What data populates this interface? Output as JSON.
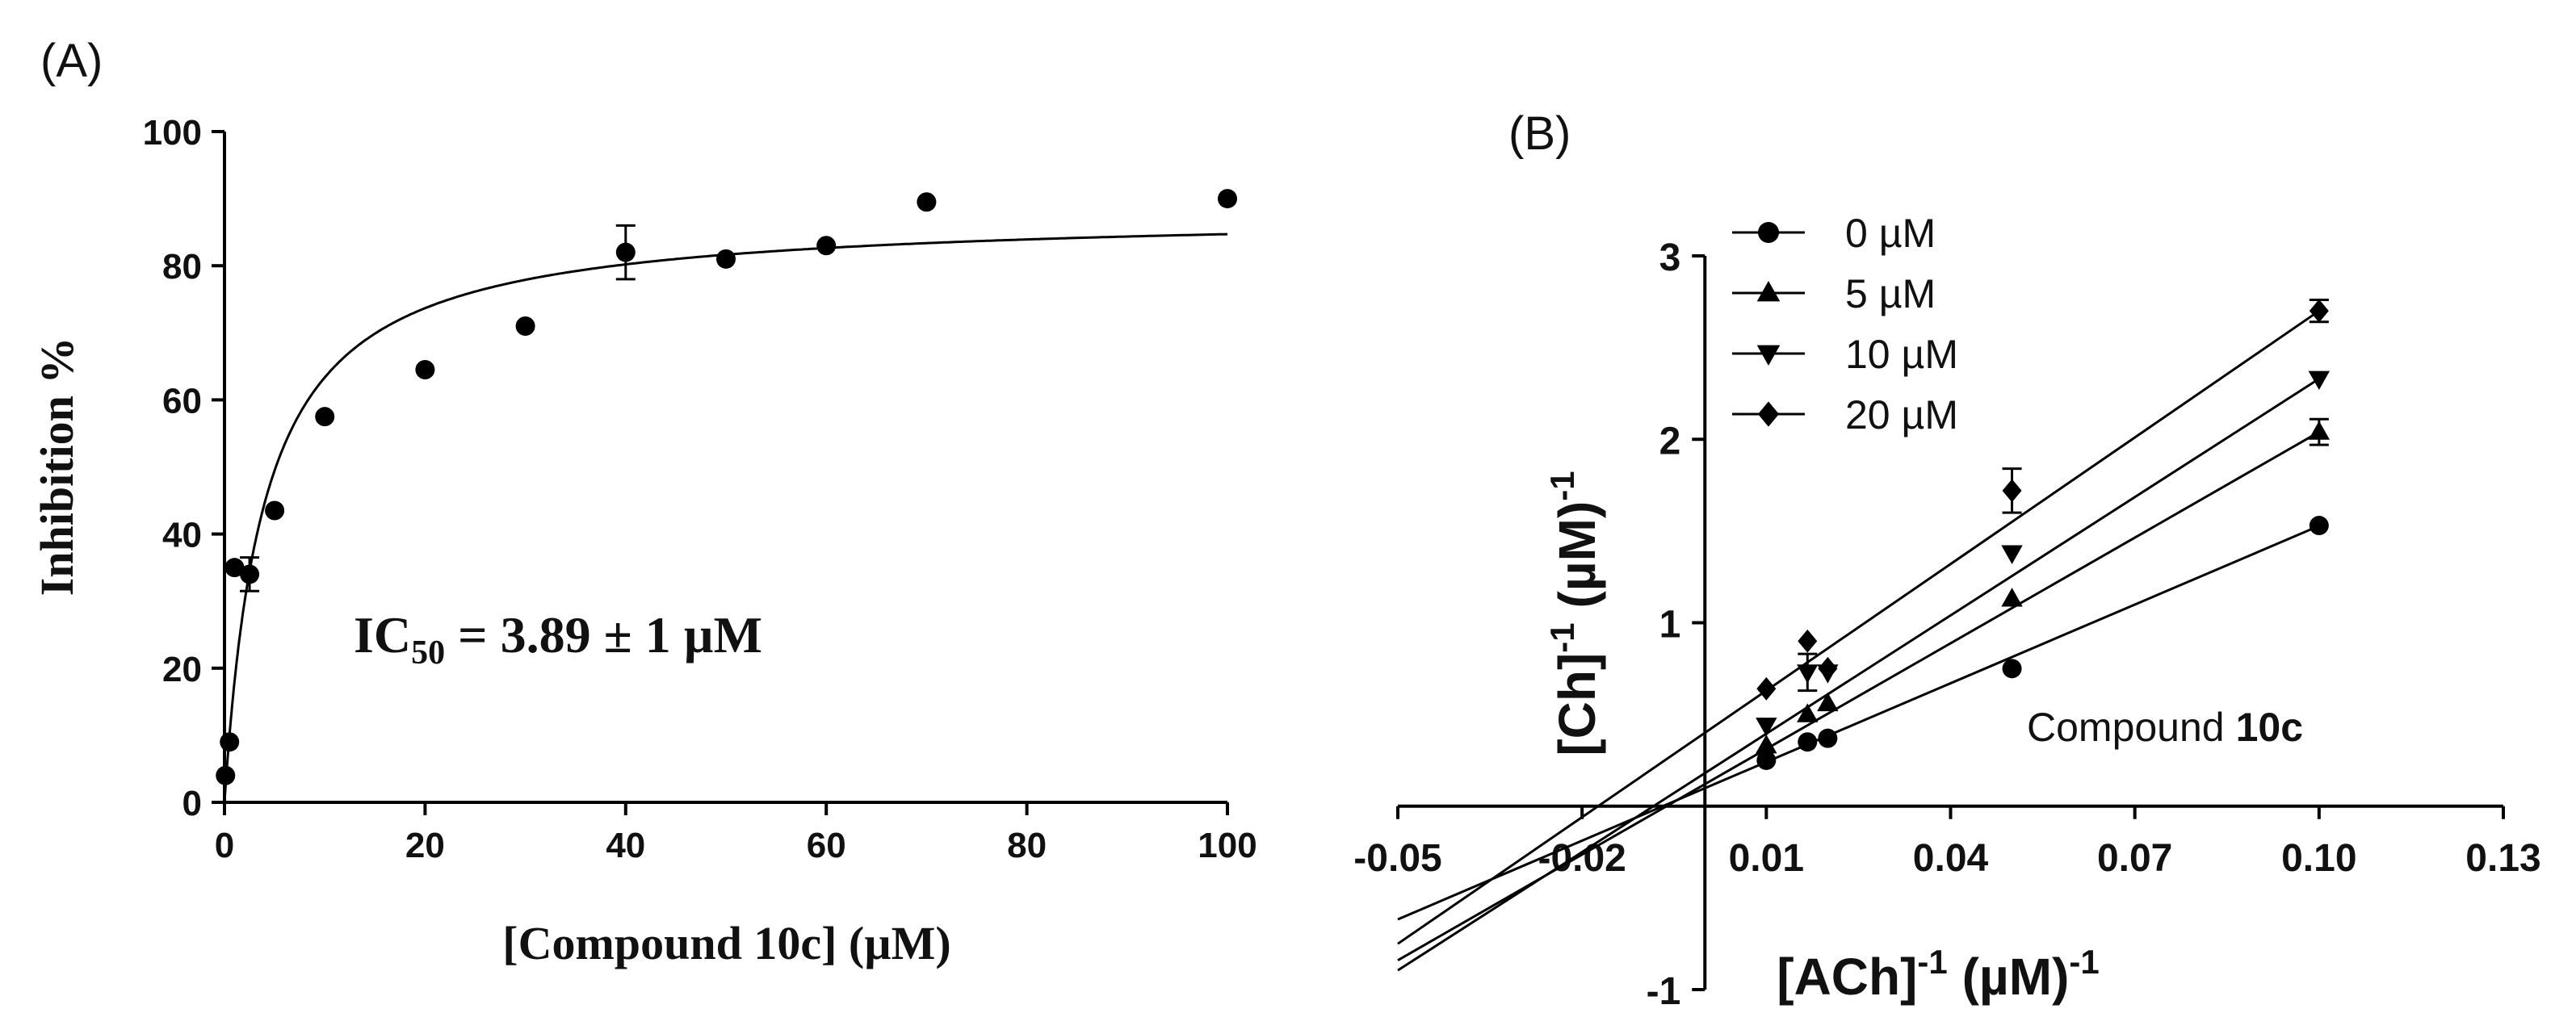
{
  "chart_data": [
    {
      "panel": "(A)",
      "type": "scatter",
      "xlabel": "[Compound 10c] (µM)",
      "ylabel": "Inhibition %",
      "xlim": [
        0,
        100
      ],
      "ylim": [
        0,
        100
      ],
      "xticks": [
        0,
        20,
        40,
        60,
        80,
        100
      ],
      "yticks": [
        0,
        20,
        40,
        60,
        80,
        100
      ],
      "annotation": {
        "prefix": "IC",
        "sub": "50",
        "suffix": " = 3.89 ± 1 µM"
      },
      "points": [
        {
          "x": 0.1,
          "y": 4,
          "err": 0
        },
        {
          "x": 0.5,
          "y": 9,
          "err": 0
        },
        {
          "x": 1,
          "y": 35,
          "err": 0
        },
        {
          "x": 2.5,
          "y": 34,
          "err": 2.5
        },
        {
          "x": 5,
          "y": 43.5,
          "err": 0
        },
        {
          "x": 10,
          "y": 57.5,
          "err": 0
        },
        {
          "x": 20,
          "y": 64.5,
          "err": 0
        },
        {
          "x": 30,
          "y": 71,
          "err": 0
        },
        {
          "x": 40,
          "y": 82,
          "err": 4
        },
        {
          "x": 50,
          "y": 81,
          "err": 0
        },
        {
          "x": 60,
          "y": 83,
          "err": 0
        },
        {
          "x": 70,
          "y": 89.5,
          "err": 0
        },
        {
          "x": 100,
          "y": 90,
          "err": 0
        }
      ],
      "fit": {
        "model": "Vmax*x/(IC50+x)",
        "vmax": 88,
        "ic50": 3.89
      }
    },
    {
      "panel": "(B)",
      "type": "line",
      "title_annotation": "Compound",
      "title_annotation_bold": "10c",
      "xlabel": {
        "base": "[ACh]",
        "sup": "-1",
        "unit": " (µM)",
        "unit_sup": "-1"
      },
      "ylabel": {
        "base": "[Ch]",
        "sup": "-1",
        "unit": " (µM)",
        "unit_sup": "-1"
      },
      "xlim": [
        -0.05,
        0.13
      ],
      "ylim": [
        -1,
        3
      ],
      "xticks": [
        {
          "value": -0.05,
          "label": "-0.05"
        },
        {
          "value": -0.02,
          "label": "-0.02"
        },
        {
          "value": 0.01,
          "label": "0.01"
        },
        {
          "value": 0.04,
          "label": "0.04"
        },
        {
          "value": 0.07,
          "label": "0.07"
        },
        {
          "value": 0.1,
          "label": "0.10"
        },
        {
          "value": 0.13,
          "label": "0.13"
        }
      ],
      "yticks": [
        {
          "value": -1,
          "label": "-1"
        },
        {
          "value": 1,
          "label": "1"
        },
        {
          "value": 2,
          "label": "2"
        },
        {
          "value": 3,
          "label": "3"
        }
      ],
      "series": [
        {
          "name": "0 µM",
          "marker": "circle",
          "x": [
            0.01,
            0.0167,
            0.02,
            0.05,
            0.1
          ],
          "y": [
            0.25,
            0.35,
            0.37,
            0.75,
            1.53
          ],
          "err": [
            0,
            0,
            0,
            0,
            0
          ],
          "line": {
            "x0": -0.05,
            "x1": 0.1,
            "slope": 14.3,
            "intercept": 0.098
          }
        },
        {
          "name": "5 µM",
          "marker": "triangle-up",
          "x": [
            0.01,
            0.0167,
            0.02,
            0.05,
            0.1
          ],
          "y": [
            0.33,
            0.5,
            0.56,
            1.13,
            2.04
          ],
          "err": [
            0,
            0,
            0,
            0,
            0.07
          ],
          "line": {
            "x0": -0.05,
            "x1": 0.1,
            "slope": 19.2,
            "intercept": 0.12
          }
        },
        {
          "name": "10 µM",
          "marker": "triangle-down",
          "x": [
            0.01,
            0.0167,
            0.02,
            0.05,
            0.1
          ],
          "y": [
            0.44,
            0.73,
            0.73,
            1.38,
            2.33
          ],
          "err": [
            0,
            0.1,
            0,
            0,
            0
          ],
          "line": {
            "x0": -0.05,
            "x1": 0.1,
            "slope": 21.5,
            "intercept": 0.18
          }
        },
        {
          "name": "20 µM",
          "marker": "diamond",
          "x": [
            0.01,
            0.0167,
            0.02,
            0.05,
            0.1
          ],
          "y": [
            0.64,
            0.9,
            0.75,
            1.72,
            2.7
          ],
          "err": [
            0,
            0,
            0,
            0.12,
            0.06
          ],
          "line": {
            "x0": -0.05,
            "x1": 0.1,
            "slope": 23.0,
            "intercept": 0.4
          }
        }
      ]
    }
  ]
}
